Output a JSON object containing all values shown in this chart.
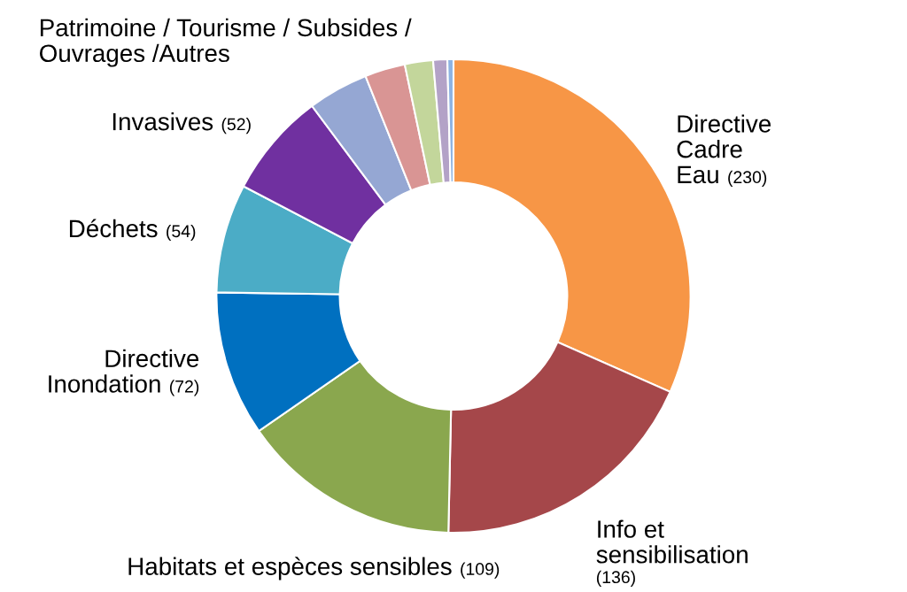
{
  "chart_data": {
    "type": "donut",
    "categories": [
      "Directive\nCadre\nEau",
      "Info et\nsensibilisation",
      "Habitats et espèces sensibles",
      "Directive\nInondation",
      "Déchets",
      "Invasives",
      null,
      null,
      null,
      null,
      null
    ],
    "values": [
      230,
      136,
      109,
      72,
      54,
      52,
      30,
      20,
      14,
      7,
      3
    ],
    "value_labels": [
      "(230)",
      "(136)",
      "(109)",
      "(72)",
      "(54)",
      "(52)",
      null,
      null,
      null,
      null,
      null
    ],
    "colors": [
      "#f79646",
      "#a5474a",
      "#8aa74e",
      "#0070c0",
      "#4bacc6",
      "#7030a0",
      "#95a7d3",
      "#d99594",
      "#c3d69b",
      "#b3a2c7",
      "#8db3e2"
    ],
    "annotations": [
      "Patrimoine / Tourisme / Subsides /\nOuvrages /Autres"
    ],
    "legend": false
  }
}
